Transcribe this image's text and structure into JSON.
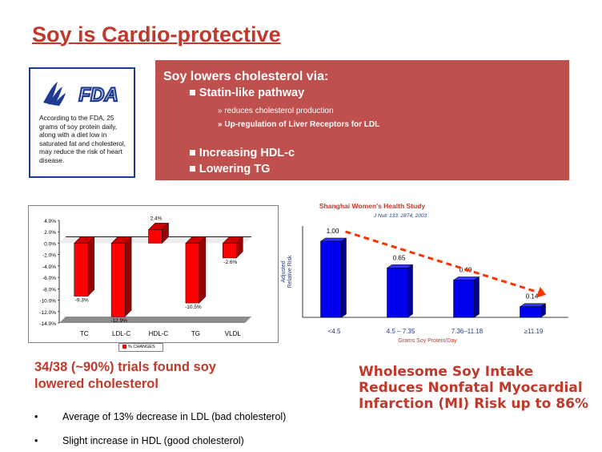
{
  "title": "Soy is Cardio-protective",
  "fda": {
    "logo_text": "FDA",
    "icon": "hhs-eagle-icon",
    "text": "According to the FDA, 25 grams of soy protein daily, along with a diet low in saturated fat and cholesterol, may reduce the risk of heart disease."
  },
  "panel": {
    "heading": "Soy lowers cholesterol via:",
    "items": [
      {
        "label": "Statin-like pathway",
        "subitems": [
          "reduces cholesterol production",
          "Up-regulation of Liver Receptors for LDL"
        ]
      },
      {
        "label": "Increasing HDL-c"
      },
      {
        "label": "Lowering TG"
      }
    ],
    "bullet_icon": "square-bullet-icon",
    "subbullet_icon": "double-chevron-icon",
    "color": "#c0504d"
  },
  "chart_data": [
    {
      "type": "bar",
      "categories": [
        "TC",
        "LDL-C",
        "HDL-C",
        "TG",
        "VLDL"
      ],
      "series": [
        {
          "name": "% CHANGES",
          "values": [
            -9.3,
            -12.9,
            2.4,
            -10.5,
            -2.6
          ]
        }
      ],
      "value_labels": [
        "-9.3%",
        "-12.9%",
        "2.4%",
        "-10.5%",
        "-2.6%"
      ],
      "ylim": [
        -14,
        4
      ],
      "yticks": [
        "4.0%",
        "2.0%",
        "0.0%",
        "-2.0%",
        "-4.0%",
        "-6.0%",
        "-8.0%",
        "-10.0%",
        "-12.0%",
        "-14.0%"
      ],
      "legend": "bottom",
      "color": "#ff0000",
      "bar_3d": true
    },
    {
      "type": "bar",
      "title": "Shanghai Women's Health Study",
      "subtitle": "J Nutr 133: 2874, 2003",
      "categories": [
        "<4.5",
        "4.5 – 7.35",
        "7.36–11.18",
        "≥11.19"
      ],
      "values": [
        1.0,
        0.65,
        0.49,
        0.14
      ],
      "value_labels": [
        "1.00",
        "0.65",
        "0.49",
        "0.14"
      ],
      "ylabel": "Adjusted Relative Risk",
      "xlabel": "Grams Soy Protein/Day",
      "ylim": [
        0,
        1.2
      ],
      "color": "#0000ee",
      "trend_arrow_color": "#ff3300",
      "bar_3d": true
    }
  ],
  "trials_text": "34/38 (~90%) trials found soy lowered cholesterol",
  "bullets": [
    "Average of 13% decrease  in LDL (bad cholesterol)",
    "Slight increase in HDL  (good cholesterol)"
  ],
  "wholesome": "Wholesome Soy Intake Reduces Nonfatal Myocardial Infarction (MI) Risk up to 86%"
}
